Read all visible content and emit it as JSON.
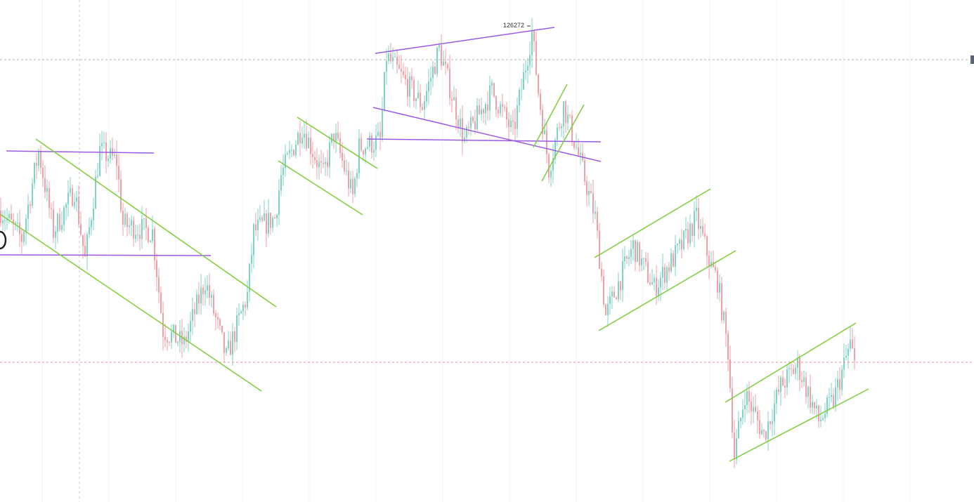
{
  "chart_data": {
    "type": "candlestick",
    "title": "",
    "grid": true,
    "colors": {
      "up": "#7fd3c4",
      "down": "#f0a0a6",
      "trend_purple": "#9b59e6",
      "trend_green": "#7ccf3a",
      "last_price_line": "#f28b9b",
      "price_line": "#b0b0b0",
      "marker": "#5a6474"
    },
    "high_label": "126272",
    "high_value": 126272,
    "last_price": 90905,
    "horizontal_level": 122929,
    "price_path": [
      [
        0,
        106950
      ],
      [
        10,
        103980
      ],
      [
        18,
        113270
      ],
      [
        25,
        104725
      ],
      [
        35,
        109180
      ],
      [
        40,
        101750
      ],
      [
        47,
        113270
      ],
      [
        55,
        112155
      ],
      [
        58,
        105470
      ],
      [
        72,
        104725
      ],
      [
        77,
        94320
      ],
      [
        87,
        92840
      ],
      [
        97,
        99520
      ],
      [
        107,
        91350
      ],
      [
        117,
        98040
      ],
      [
        120,
        104725
      ],
      [
        130,
        106210
      ],
      [
        133,
        110670
      ],
      [
        143,
        115870
      ],
      [
        153,
        110670
      ],
      [
        158,
        115130
      ],
      [
        167,
        108440
      ],
      [
        170,
        113640
      ],
      [
        180,
        114380
      ],
      [
        183,
        123300
      ],
      [
        200,
        118100
      ],
      [
        208,
        124040
      ],
      [
        220,
        114380
      ],
      [
        233,
        119585
      ],
      [
        243,
        115130
      ],
      [
        252,
        125900
      ],
      [
        255,
        119585
      ],
      [
        260,
        111410
      ],
      [
        267,
        118100
      ],
      [
        273,
        113640
      ],
      [
        282,
        106210
      ],
      [
        287,
        95810
      ],
      [
        300,
        103240
      ],
      [
        310,
        98780
      ],
      [
        323,
        103240
      ],
      [
        330,
        106210
      ],
      [
        337,
        101010
      ],
      [
        340,
        99520
      ],
      [
        345,
        92090
      ],
      [
        348,
        80950
      ],
      [
        353,
        87640
      ],
      [
        362,
        83180
      ],
      [
        370,
        88380
      ],
      [
        378,
        90610
      ],
      [
        388,
        84660
      ],
      [
        395,
        86890
      ],
      [
        403,
        92840
      ],
      [
        405,
        90610
      ]
    ],
    "trendlines": [
      {
        "color": "purple",
        "points": [
          3,
          113270,
          73,
          113047
        ]
      },
      {
        "color": "purple",
        "points": [
          0,
          102273,
          100,
          102199
        ]
      },
      {
        "color": "purple",
        "points": [
          178,
          123597,
          263,
          126346
        ]
      },
      {
        "color": "purple",
        "points": [
          177,
          117876,
          285,
          112155
        ]
      },
      {
        "color": "purple",
        "points": [
          174,
          114533,
          285,
          114236
        ]
      },
      {
        "color": "green",
        "points": [
          17,
          114533,
          131,
          96775
        ]
      },
      {
        "color": "green",
        "points": [
          0,
          106583,
          124,
          87859
        ]
      },
      {
        "color": "green",
        "points": [
          141,
          116836,
          179,
          111412
        ]
      },
      {
        "color": "green",
        "points": [
          132,
          112229,
          172,
          106508
        ]
      },
      {
        "color": "green",
        "points": [
          253,
          113641,
          269,
          120328
        ]
      },
      {
        "color": "green",
        "points": [
          257,
          110075,
          277,
          118173
        ]
      },
      {
        "color": "green",
        "points": [
          282,
          101976,
          337,
          109257
        ]
      },
      {
        "color": "green",
        "points": [
          284,
          94249,
          349,
          102719
        ]
      },
      {
        "color": "green",
        "points": [
          344,
          86669,
          406,
          95066
        ]
      },
      {
        "color": "green",
        "points": [
          346,
          80429,
          412,
          88082
        ]
      }
    ],
    "crosshair_bar": 38
  }
}
